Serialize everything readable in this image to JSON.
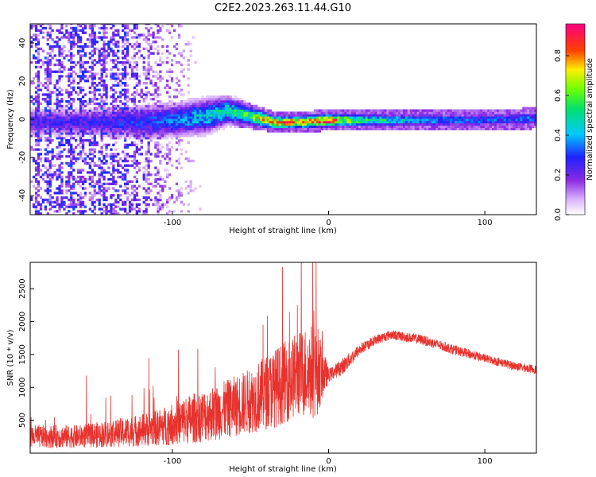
{
  "title": "C2E2.2023.263.11.44.G10",
  "chart_data": [
    {
      "type": "heatmap",
      "xlabel": "Height of straight line (km)",
      "ylabel": "Frequency (Hz)",
      "xlim": [
        -191,
        133
      ],
      "ylim": [
        -50,
        50
      ],
      "xticks": [
        -100,
        0,
        100
      ],
      "yticks": [
        -40,
        -20,
        0,
        20,
        40
      ],
      "colorbar": {
        "label": "Normalized spectral amplitude",
        "range": [
          0,
          0.96
        ],
        "ticks": [
          "0.0",
          "0.2",
          "0.4",
          "0.6",
          "0.8"
        ],
        "colormap": "rainbow (white-violet-blue-cyan-green-yellow-red-magenta)"
      },
      "ridge": [
        {
          "x": -155,
          "f": -2,
          "spread": 4,
          "amp": 0.25
        },
        {
          "x": -120,
          "f": -2,
          "spread": 5,
          "amp": 0.3
        },
        {
          "x": -100,
          "f": -1,
          "spread": 5,
          "amp": 0.35
        },
        {
          "x": -80,
          "f": 1,
          "spread": 5,
          "amp": 0.45
        },
        {
          "x": -65,
          "f": 4,
          "spread": 4,
          "amp": 0.5
        },
        {
          "x": -50,
          "f": 1,
          "spread": 3,
          "amp": 0.6
        },
        {
          "x": -35,
          "f": -2,
          "spread": 2,
          "amp": 0.85
        },
        {
          "x": -20,
          "f": -2,
          "spread": 2,
          "amp": 0.8
        },
        {
          "x": 0,
          "f": -1,
          "spread": 2,
          "amp": 0.9
        },
        {
          "x": 20,
          "f": -1,
          "spread": 2,
          "amp": 0.55
        },
        {
          "x": 60,
          "f": -1,
          "spread": 2,
          "amp": 0.4
        },
        {
          "x": 100,
          "f": -1,
          "spread": 2,
          "amp": 0.35
        },
        {
          "x": 133,
          "f": 0,
          "spread": 2,
          "amp": 0.35
        }
      ],
      "noise_region": {
        "x_from": -191,
        "x_to": -70,
        "amp": 0.25
      }
    },
    {
      "type": "line",
      "xlabel": "Height of straight line (km)",
      "ylabel": "SNR (10 * v/v)",
      "xlim": [
        -191,
        133
      ],
      "ylim": [
        0,
        2900
      ],
      "xticks": [
        -100,
        0,
        100
      ],
      "yticks": [
        500,
        1000,
        1500,
        2000,
        2500
      ],
      "series": [
        {
          "color": "#e8322d",
          "envelope": {
            "x": [
              -191,
              -160,
              -130,
              -110,
              -90,
              -70,
              -50,
              -35,
              -20,
              -8,
              0,
              10,
              20,
              30,
              40,
              60,
              80,
              100,
              120,
              133
            ],
            "base": [
              200,
              200,
              250,
              300,
              400,
              500,
              650,
              800,
              1000,
              1050,
              1150,
              1300,
              1550,
              1700,
              1780,
              1700,
              1550,
              1420,
              1300,
              1250
            ],
            "var": [
              350,
              350,
              450,
              550,
              750,
              850,
              1000,
              1200,
              1300,
              1500,
              200,
              250,
              180,
              150,
              150,
              150,
              150,
              130,
              130,
              130
            ]
          },
          "spikes": [
            {
              "x": -155,
              "y": 1180
            },
            {
              "x": -115,
              "y": 1450
            },
            {
              "x": -42,
              "y": 1950
            },
            {
              "x": -25,
              "y": 2150
            },
            {
              "x": -20,
              "y": 2250
            },
            {
              "x": -8,
              "y": 2900
            }
          ]
        }
      ]
    }
  ]
}
